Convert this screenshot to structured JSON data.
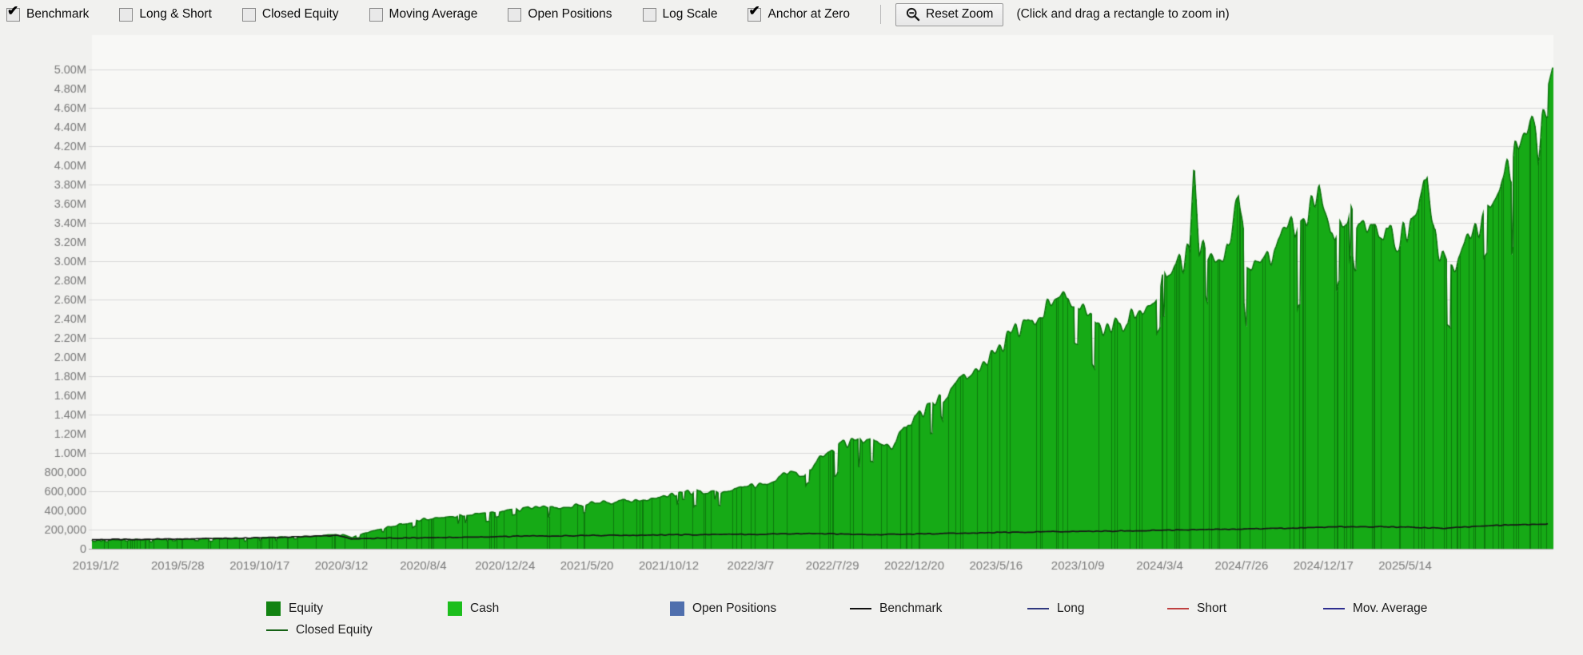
{
  "toolbar": {
    "checkboxes": [
      {
        "label": "Benchmark",
        "checked": true
      },
      {
        "label": "Long & Short",
        "checked": false
      },
      {
        "label": "Closed Equity",
        "checked": false
      },
      {
        "label": "Moving Average",
        "checked": false
      },
      {
        "label": "Open Positions",
        "checked": false
      },
      {
        "label": "Log Scale",
        "checked": false
      },
      {
        "label": "Anchor at Zero",
        "checked": true
      }
    ],
    "reset_zoom_label": "Reset Zoom",
    "hint": "(Click and drag a rectangle to zoom in)"
  },
  "chart_data": {
    "type": "area",
    "title": "",
    "xlabel": "",
    "ylabel": "",
    "ylim": [
      0,
      5200000
    ],
    "grid": "horizontal gridlines every 400,000 starting at 200,000; legend at bottom",
    "y_ticks": [
      {
        "value": 0,
        "label": "0"
      },
      {
        "value": 200000,
        "label": "200,000"
      },
      {
        "value": 400000,
        "label": "400,000"
      },
      {
        "value": 600000,
        "label": "600,000"
      },
      {
        "value": 800000,
        "label": "800,000"
      },
      {
        "value": 1000000,
        "label": "1.00M"
      },
      {
        "value": 1200000,
        "label": "1.20M"
      },
      {
        "value": 1400000,
        "label": "1.40M"
      },
      {
        "value": 1600000,
        "label": "1.60M"
      },
      {
        "value": 1800000,
        "label": "1.80M"
      },
      {
        "value": 2000000,
        "label": "2.00M"
      },
      {
        "value": 2200000,
        "label": "2.20M"
      },
      {
        "value": 2400000,
        "label": "2.40M"
      },
      {
        "value": 2600000,
        "label": "2.60M"
      },
      {
        "value": 2800000,
        "label": "2.80M"
      },
      {
        "value": 3000000,
        "label": "3.00M"
      },
      {
        "value": 3200000,
        "label": "3.20M"
      },
      {
        "value": 3400000,
        "label": "3.40M"
      },
      {
        "value": 3600000,
        "label": "3.60M"
      },
      {
        "value": 3800000,
        "label": "3.80M"
      },
      {
        "value": 4000000,
        "label": "4.00M"
      },
      {
        "value": 4200000,
        "label": "4.20M"
      },
      {
        "value": 4400000,
        "label": "4.40M"
      },
      {
        "value": 4600000,
        "label": "4.60M"
      },
      {
        "value": 4800000,
        "label": "4.80M"
      },
      {
        "value": 5000000,
        "label": "5.00M"
      }
    ],
    "x_tick_labels": [
      "2019/1/2",
      "2019/5/28",
      "2019/10/17",
      "2020/3/12",
      "2020/8/4",
      "2020/12/24",
      "2021/5/20",
      "2021/10/12",
      "2022/3/7",
      "2022/7/29",
      "2022/12/20",
      "2023/5/16",
      "2023/10/9",
      "2024/3/4",
      "2024/7/26",
      "2024/12/17",
      "2025/5/14"
    ],
    "series": [
      {
        "name": "Equity/Cash area (upper envelope, anchor points read from pixels)",
        "style": "filled area of dense daily bars from zero, bright green with darker vertical strokes",
        "x_frac": [
          0.0,
          0.03,
          0.06,
          0.09,
          0.12,
          0.15,
          0.163,
          0.172,
          0.178,
          0.185,
          0.195,
          0.21,
          0.227,
          0.245,
          0.26,
          0.283,
          0.3,
          0.32,
          0.34,
          0.36,
          0.38,
          0.395,
          0.41,
          0.425,
          0.432,
          0.44,
          0.451,
          0.465,
          0.478,
          0.488,
          0.5,
          0.512,
          0.525,
          0.538,
          0.548,
          0.557,
          0.563,
          0.575,
          0.59,
          0.605,
          0.619,
          0.632,
          0.648,
          0.66,
          0.67,
          0.682,
          0.69,
          0.7,
          0.712,
          0.725,
          0.736,
          0.745,
          0.7515,
          0.7545,
          0.758,
          0.765,
          0.772,
          0.778,
          0.785,
          0.79,
          0.8,
          0.81,
          0.82,
          0.832,
          0.84,
          0.848,
          0.856,
          0.865,
          0.875,
          0.885,
          0.893,
          0.9,
          0.908,
          0.914,
          0.919,
          0.924,
          0.928,
          0.934,
          0.941,
          0.948,
          0.955,
          0.962,
          0.968,
          0.975,
          0.981,
          0.986,
          0.99,
          0.993,
          0.997,
          1.0
        ],
        "values": [
          95000,
          100000,
          106000,
          113000,
          122000,
          133000,
          148000,
          152000,
          118000,
          160000,
          205000,
          260000,
          325000,
          355000,
          375000,
          420000,
          440000,
          455000,
          490000,
          515000,
          545000,
          585000,
          615000,
          635000,
          600000,
          640000,
          680000,
          740000,
          820000,
          790000,
          1000000,
          1130000,
          1180000,
          1190000,
          1120000,
          1300000,
          1450000,
          1550000,
          1750000,
          1950000,
          2150000,
          2350000,
          2600000,
          2700000,
          2780000,
          2600000,
          2420000,
          2450000,
          2520000,
          2750000,
          2950000,
          3120000,
          3220000,
          4250000,
          3280000,
          3180000,
          3120000,
          3220000,
          4000000,
          3220000,
          3120000,
          3300000,
          3520000,
          3680000,
          3900000,
          3450000,
          3520000,
          3600000,
          3620000,
          3530000,
          3280000,
          3520000,
          3560000,
          4120000,
          3420000,
          3150000,
          3020000,
          3120000,
          3320000,
          3520000,
          3700000,
          3900000,
          4080000,
          4300000,
          4580000,
          4720000,
          4380000,
          4780000,
          4880000,
          5070000
        ]
      },
      {
        "name": "Benchmark (black line, anchor points read from pixels)",
        "style": "thin dark line riding near the bottom of the area",
        "x_frac": [
          0.0,
          0.04,
          0.08,
          0.12,
          0.155,
          0.168,
          0.178,
          0.19,
          0.22,
          0.26,
          0.3,
          0.34,
          0.38,
          0.42,
          0.45,
          0.48,
          0.5,
          0.52,
          0.54,
          0.57,
          0.6,
          0.63,
          0.66,
          0.7,
          0.73,
          0.76,
          0.79,
          0.82,
          0.85,
          0.87,
          0.89,
          0.91,
          0.925,
          0.94,
          0.955,
          0.97,
          0.985,
          1.0
        ],
        "values": [
          95000,
          100000,
          105000,
          115000,
          132000,
          138000,
          100000,
          108000,
          115000,
          122000,
          132000,
          138000,
          143000,
          148000,
          150000,
          155000,
          158000,
          150000,
          148000,
          155000,
          163000,
          172000,
          180000,
          185000,
          192000,
          200000,
          208000,
          215000,
          228000,
          232000,
          228000,
          220000,
          212000,
          228000,
          240000,
          248000,
          255000,
          262000
        ]
      }
    ]
  },
  "legend": {
    "rows": [
      [
        {
          "label": "Equity",
          "swatch": "square",
          "color": "#128312"
        },
        {
          "label": "Cash",
          "swatch": "square",
          "color": "#1cbe1c"
        },
        {
          "label": "Open Positions",
          "swatch": "square",
          "color": "#4f6fad"
        },
        {
          "label": "Benchmark",
          "swatch": "line",
          "color": "#111111"
        },
        {
          "label": "Long",
          "swatch": "line",
          "color": "#30387f"
        },
        {
          "label": "Short",
          "swatch": "line",
          "color": "#bf4040"
        },
        {
          "label": "Mov. Average",
          "swatch": "line",
          "color": "#2e2e8f"
        }
      ],
      [
        {
          "label": "Closed Equity",
          "swatch": "line",
          "color": "#146114"
        }
      ]
    ]
  },
  "colors": {
    "page_bg": "#f1f1ef",
    "plot_bg": "#f8f8f6",
    "gridline": "#d9d9d9",
    "axis_text": "#7b7b7b",
    "axis_line": "#a8a8a8",
    "cash_fill": "#16aa16",
    "dark_green_stroke": "#0d7a0d",
    "equity_cap": "#0c720c",
    "benchmark_line": "#161616"
  }
}
